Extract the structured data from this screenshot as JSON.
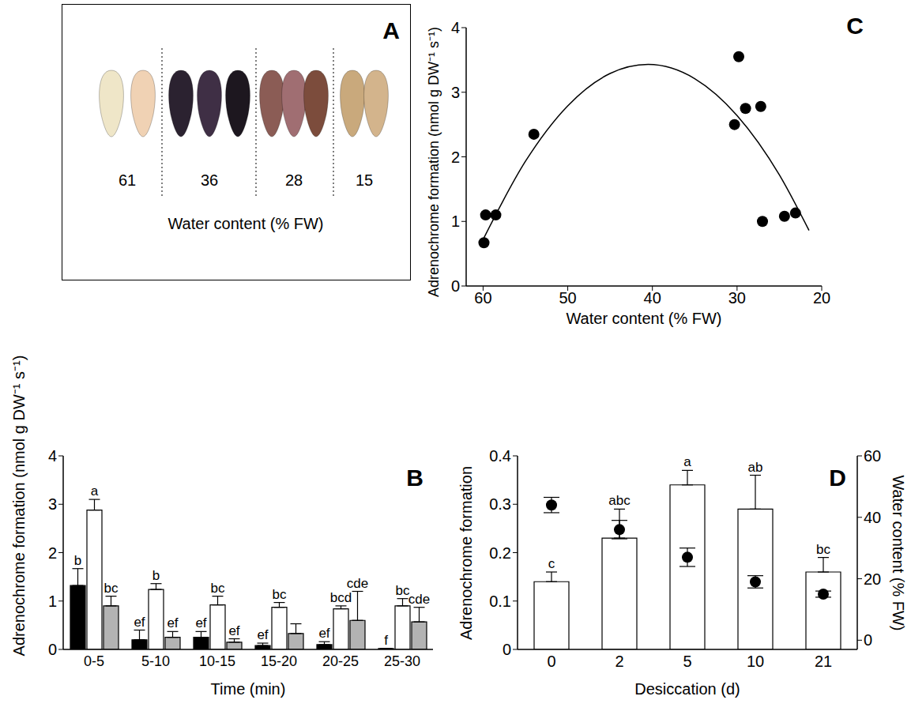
{
  "panel_a": {
    "panel": "A",
    "labels": [
      61,
      36,
      28,
      15
    ],
    "x_label": "Water content (% FW)"
  },
  "chart_data": [
    {
      "panel": "B",
      "type": "bar",
      "y_label": "Adrenochrome formation (nmol g DW⁻¹ s⁻¹)",
      "x_label": "Time (min)",
      "categories": [
        "0-5",
        "5-10",
        "10-15",
        "15-20",
        "20-25",
        "25-30"
      ],
      "ylim": [
        0,
        4
      ],
      "yticks": [
        0,
        1,
        2,
        3,
        4
      ],
      "grid": false,
      "series": [
        {
          "type": "bar",
          "color": "#000000",
          "values": [
            1.32,
            0.2,
            0.25,
            0.08,
            0.1,
            0.02
          ],
          "errors": [
            0.35,
            0.2,
            0.12,
            0.05,
            0.06,
            0
          ],
          "letters": [
            "b",
            "ef",
            "ef",
            "ef",
            "ef",
            "f"
          ]
        },
        {
          "type": "bar",
          "color": "#ffffff",
          "values": [
            2.88,
            1.24,
            0.92,
            0.87,
            0.84,
            0.9
          ],
          "errors": [
            0.22,
            0.12,
            0.18,
            0.1,
            0.06,
            0.15
          ],
          "letters": [
            "a",
            "b",
            "bc",
            "bc",
            "bcd",
            "bc"
          ]
        },
        {
          "type": "bar",
          "color": "#b3b3b3",
          "values": [
            0.9,
            0.25,
            0.15,
            0.33,
            0.6,
            0.57
          ],
          "errors": [
            0.2,
            0.12,
            0.07,
            0.2,
            0.6,
            0.3
          ],
          "letters": [
            "bc",
            "ef",
            "ef",
            null,
            "cde",
            "cde"
          ]
        }
      ]
    },
    {
      "panel": "C",
      "type": "scatter",
      "y_label": "Adrenochrome formation (nmol g DW⁻¹ s⁻¹)",
      "x_label": "Water content (% FW)",
      "xlim": [
        62,
        20
      ],
      "xticks": [
        60,
        50,
        40,
        30,
        20
      ],
      "ylim": [
        0,
        4
      ],
      "yticks": [
        0,
        1,
        2,
        3,
        4
      ],
      "grid": false,
      "series": [
        {
          "type": "scatter",
          "color": "#000000",
          "marker": "circle",
          "x": [
            59.9,
            59.7,
            58.5,
            54.0,
            29.8,
            30.3,
            29.0,
            27.2,
            27.0,
            24.4,
            23.1
          ],
          "values": [
            0.67,
            1.1,
            1.1,
            2.35,
            3.55,
            2.5,
            2.75,
            2.78,
            1.0,
            1.08,
            1.13
          ]
        },
        {
          "type": "line",
          "color": "#000000",
          "line_style": "solid",
          "x": [
            60,
            55,
            50,
            45,
            40.5,
            35,
            30,
            25,
            21.5
          ],
          "values": [
            0.72,
            1.93,
            2.79,
            3.29,
            3.43,
            3.21,
            2.64,
            1.72,
            0.86
          ]
        }
      ]
    },
    {
      "panel": "D",
      "type": "bar",
      "y_label": "Adrenochrome formation",
      "y2_label": "Water content (% FW)",
      "x_label": "Desiccation (d)",
      "categories": [
        "0",
        "2",
        "5",
        "10",
        "21"
      ],
      "ylim": [
        0,
        0.4
      ],
      "yticks": [
        0,
        0.1,
        0.2,
        0.3,
        0.4
      ],
      "y2lim": [
        -3,
        60
      ],
      "y2ticks": [
        0,
        20,
        40,
        60
      ],
      "grid": false,
      "series": [
        {
          "type": "bar",
          "color": "#ffffff",
          "values": [
            0.14,
            0.23,
            0.34,
            0.29,
            0.16
          ],
          "errors": [
            0.02,
            0.06,
            0.03,
            0.07,
            0.03
          ],
          "letters": [
            "c",
            "abc",
            "a",
            "ab",
            "bc"
          ]
        },
        {
          "type": "scatter",
          "axis": "y2",
          "color": "#000000",
          "marker": "circle",
          "values": [
            44,
            36,
            27,
            19,
            15
          ],
          "errors": [
            2.5,
            3,
            3,
            2,
            1
          ]
        }
      ]
    }
  ]
}
